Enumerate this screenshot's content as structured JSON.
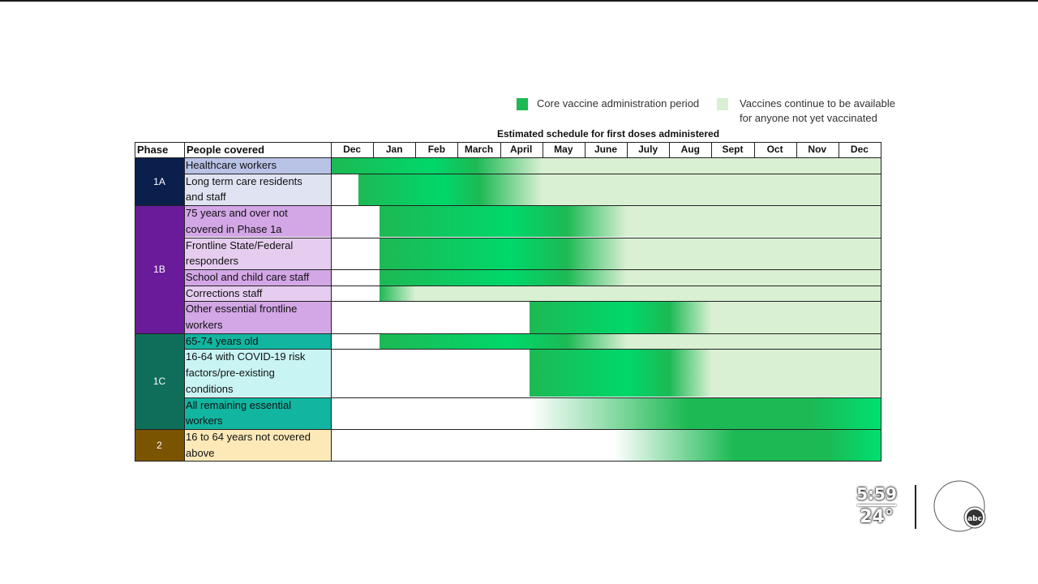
{
  "legend": {
    "core_label": "Core vaccine administration period",
    "avail_label_line1": "Vaccines continue to be available",
    "avail_label_line2": "for anyone not yet vaccinated",
    "core_color": "#1db954",
    "avail_color": "#d9f0d3"
  },
  "chart_data": {
    "type": "table",
    "title": "Estimated schedule for first doses administered",
    "headers": {
      "phase": "Phase",
      "people": "People covered"
    },
    "months": [
      "Dec",
      "Jan",
      "Feb",
      "March",
      "April",
      "May",
      "June",
      "July",
      "Aug",
      "Sept",
      "Oct",
      "Nov",
      "Dec"
    ],
    "phases": [
      {
        "label": "1A",
        "color": "#0b1f4d"
      },
      {
        "label": "1B",
        "color": "#6a1b9a"
      },
      {
        "label": "1C",
        "color": "#0f6e5a"
      },
      {
        "label": "2",
        "color": "#7a5400"
      }
    ],
    "groups": [
      {
        "phase": "1A",
        "lines": [
          "Healthcare workers"
        ],
        "label_color": "#b9c3e6",
        "core_start": 0,
        "core_end": 5,
        "available_after": true
      },
      {
        "phase": "1A",
        "lines": [
          "Long term care residents",
          "and staff"
        ],
        "label_color": "#dfe3f2",
        "core_start": 0.65,
        "core_end": 5,
        "available_after": true
      },
      {
        "phase": "1B",
        "lines": [
          "75 years and over not",
          "covered in Phase 1a"
        ],
        "label_color": "#d3a6e6",
        "core_start": 1.15,
        "core_end": 7,
        "available_after": true
      },
      {
        "phase": "1B",
        "lines": [
          "Frontline State/Federal",
          "responders"
        ],
        "label_color": "#e6cdf0",
        "core_start": 1.15,
        "core_end": 7,
        "available_after": true
      },
      {
        "phase": "1B",
        "lines": [
          "School and child care staff"
        ],
        "label_color": "#d3a6e6",
        "core_start": 1.15,
        "core_end": 7,
        "available_after": true
      },
      {
        "phase": "1B",
        "lines": [
          "Corrections staff"
        ],
        "label_color": "#e6cdf0",
        "core_start": 1.15,
        "core_end": 2,
        "available_after": true
      },
      {
        "phase": "1B",
        "lines": [
          "Other essential frontline",
          "workers"
        ],
        "label_color": "#d3a6e6",
        "core_start": 4.7,
        "core_end": 9,
        "available_after": true
      },
      {
        "phase": "1C",
        "lines": [
          "65-74 years old"
        ],
        "label_color": "#12b5a0",
        "core_start": 1.15,
        "core_end": 7,
        "available_after": true
      },
      {
        "phase": "1C",
        "lines": [
          "16-64 with COVID-19 risk",
          "factors/pre-existing",
          "conditions"
        ],
        "label_color": "#c9f4f4",
        "core_start": 4.7,
        "core_end": 9,
        "available_after": true
      },
      {
        "phase": "1C",
        "lines": [
          "All remaining essential",
          "workers"
        ],
        "label_color": "#12b5a0",
        "core_start": 4.7,
        "core_end": 13,
        "available_after": false
      },
      {
        "phase": "2",
        "lines": [
          "16 to 64 years not covered",
          "above"
        ],
        "label_color": "#fde9b8",
        "core_start": 6.7,
        "core_end": 13,
        "available_after": false
      }
    ]
  },
  "overlay": {
    "time": "5:59",
    "temperature": "24°"
  }
}
